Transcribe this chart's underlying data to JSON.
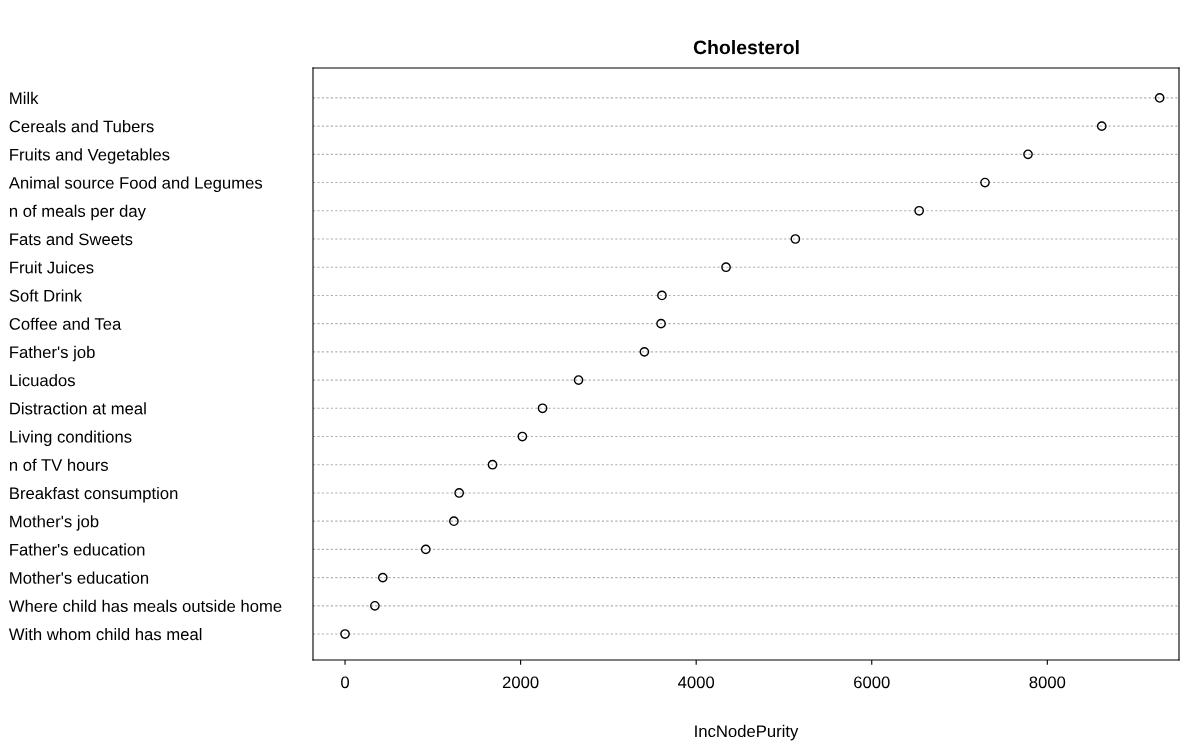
{
  "chart_data": {
    "type": "scatter",
    "title": "Cholesterol",
    "xlabel": "IncNodePurity",
    "categories": [
      "Milk",
      "Cereals and Tubers",
      "Fruits and Vegetables",
      "Animal source Food and Legumes",
      "n of meals per day",
      "Fats and Sweets",
      "Fruit Juices",
      "Soft Drink",
      "Coffee and Tea",
      "Father's job",
      "Licuados",
      "Distraction at meal",
      "Living conditions",
      "n of TV hours",
      "Breakfast consumption",
      "Mother's job",
      "Father's education",
      "Mother's education",
      "Where child has meals outside home",
      "With whom child has meal"
    ],
    "orientation": "horizontal",
    "values": [
      9280,
      8620,
      7780,
      7290,
      6540,
      5130,
      4340,
      3610,
      3600,
      3410,
      2660,
      2250,
      2020,
      1680,
      1300,
      1240,
      920,
      430,
      340,
      0
    ],
    "color": "#000000",
    "marker": "circle",
    "grid": "y",
    "xlim": [
      -365,
      9500
    ],
    "xticks": [
      0,
      2000,
      4000,
      6000,
      8000
    ]
  }
}
